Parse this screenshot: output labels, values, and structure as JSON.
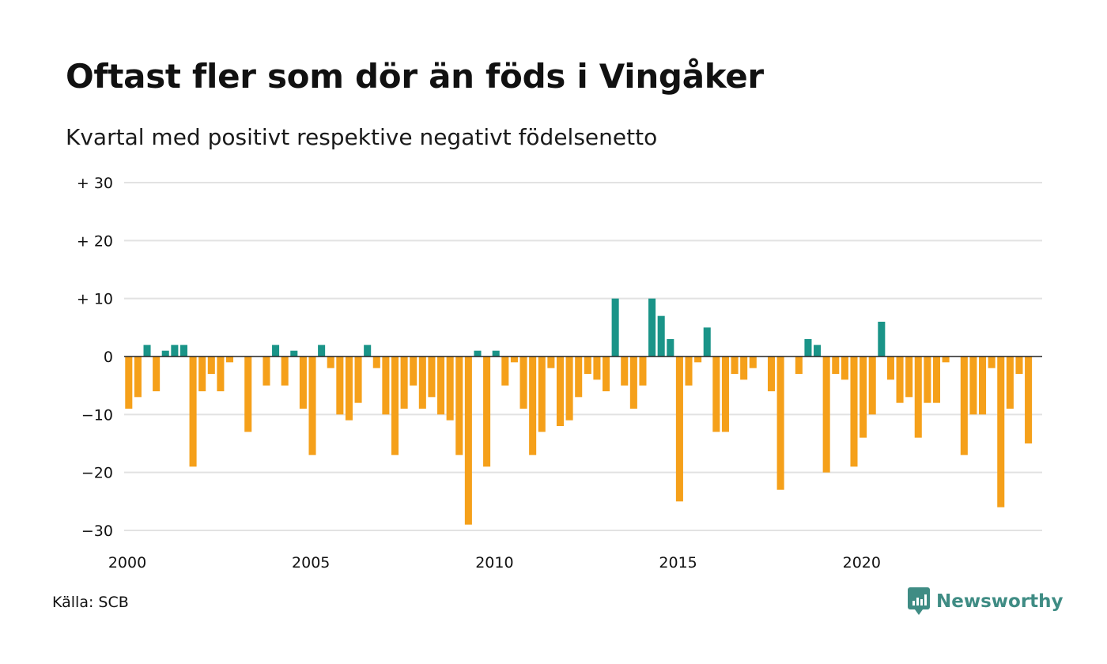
{
  "header": {
    "title": "Oftast fler som dör än föds i Vingåker",
    "subtitle": "Kvartal med positivt respektive negativt födelsenetto"
  },
  "footer": {
    "source": "Källa: SCB",
    "brand": "Newsworthy",
    "brand_icon": "newsworthy-logo-icon"
  },
  "colors": {
    "positive": "#1a9488",
    "negative": "#f5a01a",
    "grid": "#e2e2e2",
    "zero_line": "#222222",
    "brand": "#3f8c84"
  },
  "chart_data": {
    "type": "bar",
    "title": "Oftast fler som dör än föds i Vingåker",
    "subtitle": "Kvartal med positivt respektive negativt födelsenetto",
    "xlabel": "",
    "ylabel": "",
    "x_start": "2000-Q1",
    "x_end": "2024-Q4",
    "ylim": [
      -30,
      30
    ],
    "y_ticks": [
      30,
      20,
      10,
      0,
      -10,
      -20,
      -30
    ],
    "y_tick_labels": [
      "+ 30",
      "+ 20",
      "+ 10",
      "0",
      "−10",
      "−20",
      "−30"
    ],
    "x_ticks": [
      "2000",
      "2005",
      "2010",
      "2015",
      "2020"
    ],
    "grid": true,
    "legend": "none",
    "categories": [
      "2000-Q1",
      "2000-Q2",
      "2000-Q3",
      "2000-Q4",
      "2001-Q1",
      "2001-Q2",
      "2001-Q3",
      "2001-Q4",
      "2002-Q1",
      "2002-Q2",
      "2002-Q3",
      "2002-Q4",
      "2003-Q1",
      "2003-Q2",
      "2003-Q3",
      "2003-Q4",
      "2004-Q1",
      "2004-Q2",
      "2004-Q3",
      "2004-Q4",
      "2005-Q1",
      "2005-Q2",
      "2005-Q3",
      "2005-Q4",
      "2006-Q1",
      "2006-Q2",
      "2006-Q3",
      "2006-Q4",
      "2007-Q1",
      "2007-Q2",
      "2007-Q3",
      "2007-Q4",
      "2008-Q1",
      "2008-Q2",
      "2008-Q3",
      "2008-Q4",
      "2009-Q1",
      "2009-Q2",
      "2009-Q3",
      "2009-Q4",
      "2010-Q1",
      "2010-Q2",
      "2010-Q3",
      "2010-Q4",
      "2011-Q1",
      "2011-Q2",
      "2011-Q3",
      "2011-Q4",
      "2012-Q1",
      "2012-Q2",
      "2012-Q3",
      "2012-Q4",
      "2013-Q1",
      "2013-Q2",
      "2013-Q3",
      "2013-Q4",
      "2014-Q1",
      "2014-Q2",
      "2014-Q3",
      "2014-Q4",
      "2015-Q1",
      "2015-Q2",
      "2015-Q3",
      "2015-Q4",
      "2016-Q1",
      "2016-Q2",
      "2016-Q3",
      "2016-Q4",
      "2017-Q1",
      "2017-Q2",
      "2017-Q3",
      "2017-Q4",
      "2018-Q1",
      "2018-Q2",
      "2018-Q3",
      "2018-Q4",
      "2019-Q1",
      "2019-Q2",
      "2019-Q3",
      "2019-Q4",
      "2020-Q1",
      "2020-Q2",
      "2020-Q3",
      "2020-Q4",
      "2021-Q1",
      "2021-Q2",
      "2021-Q3",
      "2021-Q4",
      "2022-Q1",
      "2022-Q2",
      "2022-Q3",
      "2022-Q4",
      "2023-Q1",
      "2023-Q2",
      "2023-Q3",
      "2023-Q4",
      "2024-Q1",
      "2024-Q2",
      "2024-Q3",
      "2024-Q4"
    ],
    "values": [
      -9,
      -7,
      2,
      -6,
      1,
      2,
      2,
      -19,
      -6,
      -3,
      -6,
      -1,
      0,
      -13,
      0,
      -5,
      2,
      -5,
      1,
      -9,
      -17,
      2,
      -2,
      -10,
      -11,
      -8,
      2,
      -2,
      -10,
      -17,
      -9,
      -5,
      -9,
      -7,
      -10,
      -11,
      -17,
      -29,
      1,
      -19,
      1,
      -5,
      -1,
      -9,
      -17,
      -13,
      -2,
      -12,
      -11,
      -7,
      -3,
      -4,
      -6,
      10,
      -5,
      -9,
      -5,
      10,
      7,
      3,
      -25,
      -5,
      -1,
      5,
      -13,
      -13,
      -3,
      -4,
      -2,
      0,
      -6,
      -23,
      0,
      -3,
      3,
      2,
      -20,
      -3,
      -4,
      -19,
      -14,
      -10,
      6,
      -4,
      -8,
      -7,
      -14,
      -8,
      -8,
      -1,
      0,
      -17,
      -10,
      -10,
      -2,
      -26,
      -9,
      -3,
      -15,
      0
    ]
  }
}
